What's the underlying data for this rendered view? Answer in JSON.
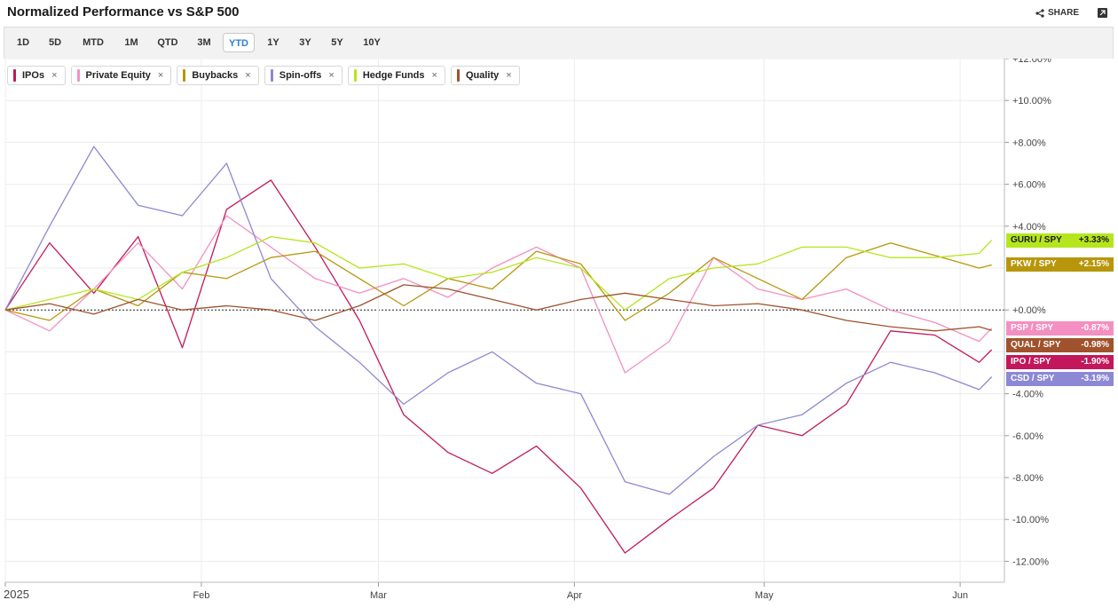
{
  "header": {
    "title": "Normalized Performance vs S&P 500",
    "share_label": "SHARE"
  },
  "ranges": [
    {
      "label": "1D",
      "active": false
    },
    {
      "label": "5D",
      "active": false
    },
    {
      "label": "MTD",
      "active": false
    },
    {
      "label": "1M",
      "active": false
    },
    {
      "label": "QTD",
      "active": false
    },
    {
      "label": "3M",
      "active": false
    },
    {
      "label": "YTD",
      "active": true
    },
    {
      "label": "1Y",
      "active": false
    },
    {
      "label": "3Y",
      "active": false
    },
    {
      "label": "5Y",
      "active": false
    },
    {
      "label": "10Y",
      "active": false
    }
  ],
  "chart_data": {
    "type": "line",
    "xlabel": "",
    "ylabel": "",
    "ylim": [
      -13,
      12
    ],
    "y_ticks": [
      12,
      10,
      8,
      6,
      4,
      2,
      0,
      -2,
      -4,
      -6,
      -8,
      -10,
      -12
    ],
    "y_tick_labels": [
      "+12.00%",
      "+10.00%",
      "+8.00%",
      "+6.00%",
      "+4.00%",
      "",
      "+0.00%",
      "",
      "-4.00%",
      "-6.00%",
      "-8.00%",
      "-10.00%",
      "-12.00%"
    ],
    "x_tick_labels": [
      "2025",
      "Feb",
      "Mar",
      "Apr",
      "May",
      "Jun"
    ],
    "x_ticks": [
      "2025-01-01",
      "2025-02-01",
      "2025-03-01",
      "2025-04-01",
      "2025-05-01",
      "2025-06-01"
    ],
    "x": [
      "2025-01-01",
      "2025-01-08",
      "2025-01-15",
      "2025-01-22",
      "2025-01-29",
      "2025-02-05",
      "2025-02-12",
      "2025-02-19",
      "2025-02-26",
      "2025-03-05",
      "2025-03-12",
      "2025-03-19",
      "2025-03-26",
      "2025-04-02",
      "2025-04-09",
      "2025-04-16",
      "2025-04-23",
      "2025-04-30",
      "2025-05-07",
      "2025-05-14",
      "2025-05-21",
      "2025-05-28",
      "2025-06-04",
      "2025-06-06"
    ],
    "grid": true,
    "legend_position": "top-left",
    "series": [
      {
        "name": "IPOs",
        "badge_label": "IPO / SPY",
        "badge_value": "-1.90%",
        "color": "#c2185b",
        "values": [
          0,
          3.2,
          0.8,
          3.5,
          -1.8,
          4.8,
          6.2,
          3.0,
          -0.5,
          -5.0,
          -6.8,
          -7.8,
          -6.5,
          -8.5,
          -11.6,
          -10.0,
          -8.5,
          -5.5,
          -6.0,
          -4.5,
          -1.0,
          -1.2,
          -2.5,
          -1.9
        ]
      },
      {
        "name": "Private Equity",
        "badge_label": "PSP / SPY",
        "badge_value": "-0.87%",
        "color": "#f48fc1",
        "values": [
          0,
          -1.0,
          1.0,
          3.2,
          1.0,
          4.5,
          3.0,
          1.5,
          0.8,
          1.5,
          0.6,
          2.0,
          3.0,
          2.0,
          -3.0,
          -1.5,
          2.5,
          1.0,
          0.5,
          1.0,
          0.0,
          -0.6,
          -1.5,
          -0.87
        ]
      },
      {
        "name": "Buybacks",
        "badge_label": "PKW / SPY",
        "badge_value": "+2.15%",
        "color": "#b8960c",
        "values": [
          0,
          -0.5,
          1.0,
          0.2,
          1.8,
          1.5,
          2.5,
          2.8,
          1.5,
          0.2,
          1.5,
          1.0,
          2.8,
          2.2,
          -0.5,
          0.8,
          2.5,
          1.5,
          0.5,
          2.5,
          3.2,
          2.6,
          2.0,
          2.15
        ]
      },
      {
        "name": "Spin-offs",
        "badge_label": "CSD / SPY",
        "badge_value": "-3.19%",
        "color": "#8c88d4",
        "values": [
          0,
          4.0,
          7.8,
          5.0,
          4.5,
          7.0,
          1.5,
          -0.8,
          -2.5,
          -4.5,
          -3.0,
          -2.0,
          -3.5,
          -4.0,
          -8.2,
          -8.8,
          -7.0,
          -5.5,
          -5.0,
          -3.5,
          -2.5,
          -3.0,
          -3.8,
          -3.19
        ]
      },
      {
        "name": "Hedge Funds",
        "badge_label": "GURU / SPY",
        "badge_value": "+3.33%",
        "color": "#b5e61d",
        "values": [
          0,
          0.5,
          1.0,
          0.5,
          1.8,
          2.5,
          3.5,
          3.2,
          2.0,
          2.2,
          1.5,
          1.8,
          2.5,
          2.0,
          0.0,
          1.5,
          2.0,
          2.2,
          3.0,
          3.0,
          2.5,
          2.5,
          2.7,
          3.33
        ]
      },
      {
        "name": "Quality",
        "badge_label": "QUAL / SPY",
        "badge_value": "-0.98%",
        "color": "#a0522d",
        "values": [
          0,
          0.3,
          -0.2,
          0.5,
          0.0,
          0.2,
          0.0,
          -0.5,
          0.2,
          1.2,
          1.0,
          0.5,
          0.0,
          0.5,
          0.8,
          0.5,
          0.2,
          0.3,
          0.0,
          -0.5,
          -0.8,
          -1.0,
          -0.8,
          -0.98
        ]
      }
    ]
  }
}
